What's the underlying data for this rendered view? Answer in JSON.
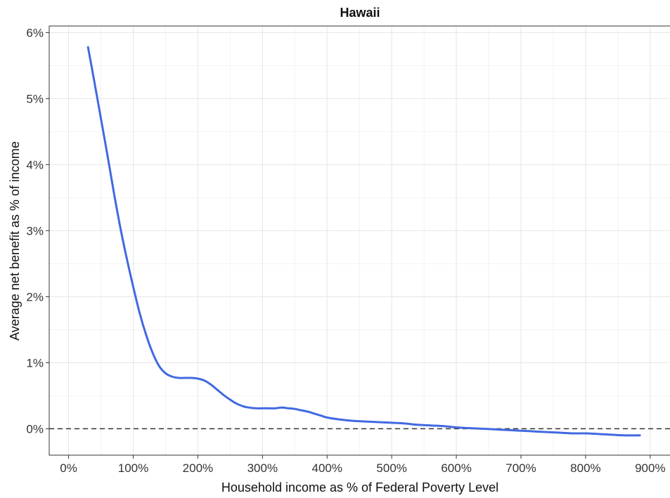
{
  "chart_data": {
    "type": "line",
    "title": "Hawaii",
    "xlabel": "Household income as % of Federal Poverty Level",
    "ylabel": "Average net benefit as % of income",
    "x_ticks": [
      0,
      100,
      200,
      300,
      400,
      500,
      600,
      700,
      800,
      900
    ],
    "x_tick_labels": [
      "0%",
      "100%",
      "200%",
      "300%",
      "400%",
      "500%",
      "600%",
      "700%",
      "800%",
      "900%"
    ],
    "y_ticks": [
      0,
      1,
      2,
      3,
      4,
      5,
      6
    ],
    "y_tick_labels": [
      "0%",
      "1%",
      "2%",
      "3%",
      "4%",
      "5%",
      "6%"
    ],
    "xlim": [
      -30,
      935
    ],
    "ylim": [
      -0.4,
      6.1
    ],
    "grid": true,
    "reference_line": {
      "y": 0,
      "style": "dashed"
    },
    "series": [
      {
        "color": "#4169e1",
        "x": [
          30,
          40,
          50,
          60,
          70,
          80,
          90,
          100,
          110,
          120,
          130,
          140,
          150,
          160,
          170,
          180,
          190,
          200,
          210,
          220,
          230,
          240,
          250,
          260,
          270,
          280,
          290,
          300,
          310,
          320,
          330,
          340,
          350,
          360,
          370,
          380,
          390,
          400,
          420,
          440,
          460,
          480,
          500,
          520,
          540,
          560,
          580,
          600,
          620,
          640,
          660,
          680,
          700,
          720,
          740,
          760,
          780,
          800,
          820,
          840,
          860,
          884
        ],
        "y": [
          5.78,
          5.25,
          4.7,
          4.15,
          3.58,
          3.05,
          2.58,
          2.15,
          1.75,
          1.42,
          1.15,
          0.95,
          0.84,
          0.79,
          0.77,
          0.77,
          0.77,
          0.76,
          0.73,
          0.67,
          0.59,
          0.51,
          0.44,
          0.38,
          0.34,
          0.32,
          0.31,
          0.31,
          0.31,
          0.31,
          0.32,
          0.31,
          0.3,
          0.28,
          0.26,
          0.23,
          0.2,
          0.17,
          0.14,
          0.12,
          0.11,
          0.1,
          0.09,
          0.08,
          0.06,
          0.05,
          0.04,
          0.02,
          0.01,
          0.0,
          -0.01,
          -0.02,
          -0.03,
          -0.04,
          -0.05,
          -0.06,
          -0.07,
          -0.07,
          -0.08,
          -0.09,
          -0.1,
          -0.1
        ]
      }
    ]
  }
}
